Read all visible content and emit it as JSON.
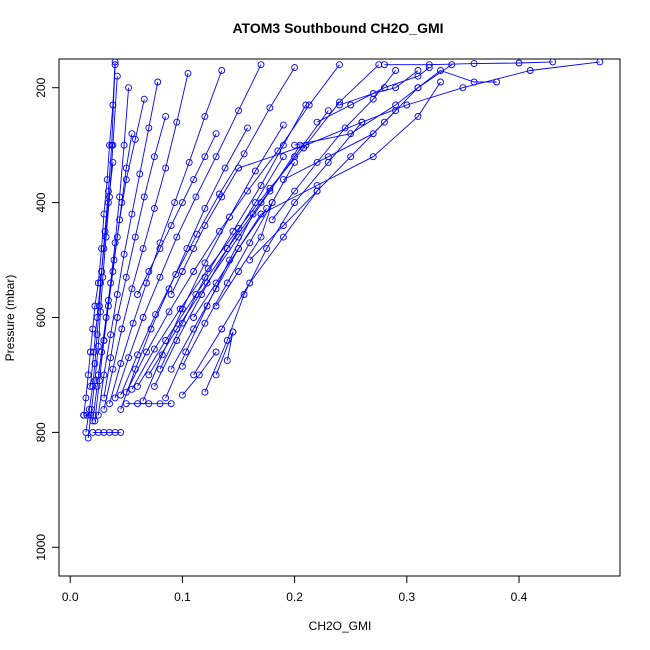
{
  "chart_data": {
    "type": "line",
    "title": "ATOM3 Southbound CH2O_GMI",
    "xlabel": "CH2O_GMI",
    "ylabel": "Pressure (mbar)",
    "xlim": [
      -0.01,
      0.49
    ],
    "ylim": [
      1050,
      150
    ],
    "x_ticks": [
      0.0,
      0.1,
      0.2,
      0.3,
      0.4
    ],
    "x_tick_labels": [
      "0.0",
      "0.1",
      "0.2",
      "0.3",
      "0.4"
    ],
    "y_ticks": [
      200,
      400,
      600,
      800,
      1000
    ],
    "y_tick_labels": [
      "200",
      "400",
      "600",
      "800",
      "1000"
    ],
    "grid": false,
    "legend": "none",
    "color": "#0000ff",
    "marker": "open-circle",
    "series": [
      {
        "x": [
          0.012,
          0.014,
          0.016,
          0.018,
          0.02,
          0.022,
          0.025,
          0.028,
          0.03,
          0.033,
          0.035,
          0.038,
          0.04
        ],
        "y": [
          770,
          740,
          700,
          660,
          620,
          580,
          540,
          480,
          420,
          360,
          300,
          230,
          155
        ]
      },
      {
        "x": [
          0.014,
          0.017,
          0.02,
          0.022,
          0.024,
          0.026,
          0.028,
          0.031,
          0.034,
          0.037,
          0.04
        ],
        "y": [
          800,
          760,
          720,
          680,
          630,
          580,
          520,
          450,
          380,
          300,
          160
        ]
      },
      {
        "x": [
          0.016,
          0.019,
          0.022,
          0.025,
          0.027,
          0.029,
          0.032,
          0.035,
          0.038,
          0.042
        ],
        "y": [
          810,
          760,
          710,
          650,
          590,
          530,
          460,
          390,
          300,
          180
        ]
      },
      {
        "x": [
          0.02,
          0.024,
          0.028,
          0.032,
          0.036,
          0.04,
          0.044,
          0.048,
          0.052
        ],
        "y": [
          780,
          720,
          660,
          600,
          540,
          470,
          390,
          300,
          200
        ]
      },
      {
        "x": [
          0.025,
          0.03,
          0.036,
          0.042,
          0.048,
          0.055,
          0.062,
          0.07,
          0.078
        ],
        "y": [
          770,
          700,
          630,
          560,
          490,
          420,
          350,
          270,
          190
        ]
      },
      {
        "x": [
          0.03,
          0.038,
          0.046,
          0.055,
          0.065,
          0.075,
          0.085,
          0.095,
          0.105
        ],
        "y": [
          760,
          690,
          620,
          550,
          480,
          410,
          340,
          260,
          175
        ]
      },
      {
        "x": [
          0.035,
          0.045,
          0.056,
          0.068,
          0.08,
          0.093,
          0.106,
          0.12,
          0.135
        ],
        "y": [
          750,
          680,
          610,
          540,
          470,
          400,
          330,
          250,
          170
        ]
      },
      {
        "x": [
          0.04,
          0.052,
          0.065,
          0.08,
          0.095,
          0.112,
          0.13,
          0.15,
          0.17
        ],
        "y": [
          740,
          670,
          600,
          530,
          460,
          390,
          320,
          240,
          160
        ]
      },
      {
        "x": [
          0.045,
          0.06,
          0.076,
          0.094,
          0.113,
          0.133,
          0.155,
          0.178,
          0.2
        ],
        "y": [
          735,
          665,
          595,
          525,
          455,
          385,
          315,
          235,
          165
        ]
      },
      {
        "x": [
          0.05,
          0.068,
          0.088,
          0.11,
          0.133,
          0.158,
          0.185,
          0.213,
          0.24
        ],
        "y": [
          730,
          660,
          590,
          520,
          450,
          380,
          310,
          230,
          160
        ]
      },
      {
        "x": [
          0.055,
          0.075,
          0.098,
          0.123,
          0.15,
          0.178,
          0.208,
          0.24,
          0.275
        ],
        "y": [
          725,
          655,
          585,
          515,
          445,
          375,
          305,
          225,
          160
        ]
      },
      {
        "x": [
          0.06,
          0.085,
          0.112,
          0.14,
          0.17,
          0.2,
          0.23
        ],
        "y": [
          720,
          640,
          560,
          480,
          400,
          320,
          240
        ]
      },
      {
        "x": [
          0.07,
          0.095,
          0.122,
          0.15,
          0.178,
          0.205
        ],
        "y": [
          700,
          620,
          540,
          460,
          380,
          300
        ]
      },
      {
        "x": [
          0.08,
          0.1,
          0.12,
          0.145,
          0.17,
          0.19,
          0.21
        ],
        "y": [
          690,
          610,
          530,
          450,
          370,
          300,
          230
        ]
      },
      {
        "x": [
          0.09,
          0.11,
          0.13,
          0.15,
          0.175
        ],
        "y": [
          690,
          620,
          550,
          480,
          410
        ]
      },
      {
        "x": [
          0.1,
          0.12,
          0.14,
          0.16,
          0.18,
          0.2
        ],
        "y": [
          685,
          610,
          540,
          470,
          400,
          330
        ]
      },
      {
        "x": [
          0.11,
          0.135,
          0.16,
          0.19,
          0.22
        ],
        "y": [
          700,
          620,
          540,
          460,
          380
        ]
      },
      {
        "x": [
          0.12,
          0.14,
          0.155,
          0.175,
          0.2,
          0.23,
          0.26
        ],
        "y": [
          730,
          640,
          560,
          480,
          400,
          330,
          260
        ]
      },
      {
        "x": [
          0.13,
          0.145
        ],
        "y": [
          700,
          625
        ]
      },
      {
        "x": [
          0.14,
          0.145
        ],
        "y": [
          675,
          625
        ]
      },
      {
        "x": [
          0.02,
          0.025,
          0.03,
          0.035,
          0.04,
          0.045
        ],
        "y": [
          800,
          800,
          800,
          800,
          800,
          800
        ]
      },
      {
        "x": [
          0.012,
          0.015,
          0.018,
          0.021
        ],
        "y": [
          770,
          770,
          770,
          770
        ]
      },
      {
        "x": [
          0.05,
          0.06,
          0.07,
          0.08,
          0.09
        ],
        "y": [
          750,
          750,
          750,
          750,
          750
        ]
      },
      {
        "x": [
          0.16,
          0.19,
          0.22,
          0.25,
          0.28,
          0.31,
          0.34
        ],
        "y": [
          500,
          440,
          380,
          320,
          260,
          200,
          160
        ]
      },
      {
        "x": [
          0.18,
          0.2,
          0.22,
          0.245,
          0.27,
          0.29
        ],
        "y": [
          430,
          380,
          330,
          270,
          220,
          170
        ]
      },
      {
        "x": [
          0.2,
          0.25,
          0.29,
          0.31,
          0.33,
          0.36,
          0.38
        ],
        "y": [
          300,
          280,
          230,
          200,
          170,
          190,
          190
        ]
      },
      {
        "x": [
          0.15,
          0.21,
          0.26,
          0.3,
          0.35,
          0.41,
          0.472
        ],
        "y": [
          340,
          300,
          260,
          230,
          200,
          170,
          155
        ]
      },
      {
        "x": [
          0.17,
          0.22,
          0.27,
          0.31,
          0.33
        ],
        "y": [
          420,
          370,
          320,
          250,
          190
        ]
      },
      {
        "x": [
          0.19,
          0.23,
          0.27,
          0.29
        ],
        "y": [
          360,
          320,
          280,
          240
        ]
      },
      {
        "x": [
          0.22,
          0.25,
          0.28,
          0.31,
          0.32
        ],
        "y": [
          260,
          230,
          200,
          180,
          165
        ]
      },
      {
        "x": [
          0.24,
          0.27,
          0.29,
          0.31
        ],
        "y": [
          230,
          210,
          200,
          170
        ]
      },
      {
        "x": [
          0.28,
          0.32,
          0.36,
          0.4,
          0.43
        ],
        "y": [
          160,
          160,
          158,
          157,
          155
        ]
      },
      {
        "x": [
          0.025,
          0.03,
          0.034,
          0.038,
          0.042,
          0.046,
          0.05,
          0.055
        ],
        "y": [
          700,
          640,
          580,
          520,
          460,
          400,
          340,
          280
        ]
      },
      {
        "x": [
          0.03,
          0.036,
          0.042,
          0.05,
          0.058,
          0.066,
          0.075,
          0.085
        ],
        "y": [
          740,
          670,
          600,
          530,
          460,
          390,
          320,
          250
        ]
      },
      {
        "x": [
          0.045,
          0.058,
          0.072,
          0.088,
          0.104,
          0.12,
          0.138,
          0.158
        ],
        "y": [
          760,
          690,
          620,
          550,
          480,
          410,
          340,
          270
        ]
      },
      {
        "x": [
          0.065,
          0.082,
          0.1,
          0.12,
          0.142,
          0.165,
          0.19
        ],
        "y": [
          745,
          665,
          585,
          505,
          425,
          345,
          265
        ]
      },
      {
        "x": [
          0.075,
          0.095,
          0.117,
          0.14,
          0.165,
          0.19
        ],
        "y": [
          720,
          640,
          560,
          480,
          400,
          320
        ]
      },
      {
        "x": [
          0.085,
          0.103,
          0.122,
          0.142,
          0.163
        ],
        "y": [
          740,
          660,
          580,
          500,
          420
        ]
      },
      {
        "x": [
          0.1,
          0.115,
          0.13
        ],
        "y": [
          735,
          700,
          660
        ]
      },
      {
        "x": [
          0.018,
          0.021,
          0.024,
          0.027,
          0.03,
          0.034,
          0.038
        ],
        "y": [
          720,
          660,
          600,
          540,
          480,
          400,
          330
        ]
      },
      {
        "x": [
          0.022,
          0.026,
          0.03,
          0.034,
          0.039,
          0.044,
          0.05,
          0.058,
          0.066
        ],
        "y": [
          780,
          710,
          640,
          570,
          500,
          430,
          360,
          290,
          220
        ]
      },
      {
        "x": [
          0.06,
          0.07,
          0.08,
          0.09,
          0.1,
          0.11,
          0.12,
          0.13
        ],
        "y": [
          560,
          520,
          480,
          440,
          400,
          360,
          320,
          280
        ]
      },
      {
        "x": [
          0.09,
          0.1,
          0.11,
          0.12,
          0.135,
          0.15
        ],
        "y": [
          560,
          520,
          480,
          440,
          390,
          340
        ]
      },
      {
        "x": [
          0.11,
          0.13,
          0.15,
          0.17
        ],
        "y": [
          600,
          540,
          480,
          420
        ]
      },
      {
        "x": [
          0.13,
          0.15,
          0.17,
          0.18
        ],
        "y": [
          580,
          520,
          460,
          400
        ]
      }
    ]
  }
}
